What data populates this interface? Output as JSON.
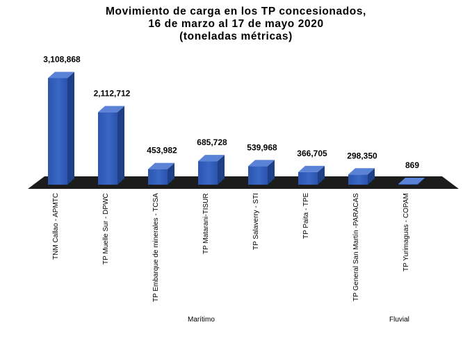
{
  "chart_data": {
    "type": "bar",
    "title_lines": [
      "Movimiento  de carga en los  TP concesionados,",
      "16 de marzo al 17 de mayo 2020",
      "(toneladas  métricas)"
    ],
    "categories": [
      "TNM Callao -  APMTC",
      "TP Muelle Sur - DPWC",
      "TP Embarque de minerales - TCSA",
      "TP Matarani-TISUR",
      "TP Salaverry - STI",
      "TP Paita - TPE",
      "TP General San Martín -PARACAS",
      "TP Yurimaguas - COPAM"
    ],
    "values": [
      3108868,
      2112712,
      453982,
      685728,
      539968,
      366705,
      298350,
      869
    ],
    "value_labels": [
      "3,108,868",
      "2,112,712",
      "453,982",
      "685,728",
      "539,968",
      "366,705",
      "298,350",
      "869"
    ],
    "groups": [
      {
        "label": "Marítimo",
        "category_count": 7
      },
      {
        "label": "Fluvial",
        "category_count": 1
      }
    ],
    "ylim": [
      0,
      3300000
    ],
    "grid": false,
    "legend": "none",
    "colors": {
      "bar_front": "#3a66c4",
      "bar_side": "#1f3f86",
      "bar_top": "#5a82d6",
      "floor": "#1c1c1c"
    }
  }
}
